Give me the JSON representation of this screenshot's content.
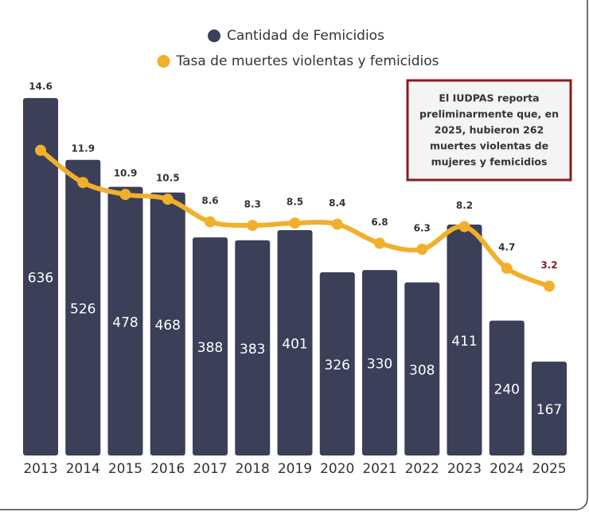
{
  "chart_data": {
    "type": "bar_line",
    "categories": [
      "2013",
      "2014",
      "2015",
      "2016",
      "2017",
      "2018",
      "2019",
      "2020",
      "2021",
      "2022",
      "2023",
      "2024",
      "2025"
    ],
    "series": [
      {
        "name": "Cantidad de Femicidios",
        "type": "bar",
        "color": "#3b3f58",
        "values": [
          636,
          526,
          478,
          468,
          388,
          383,
          401,
          326,
          330,
          308,
          411,
          240,
          167
        ]
      },
      {
        "name": "Tasa de muertes violentas y femicidios",
        "type": "line",
        "axis": "y2",
        "color": "#f0b02c",
        "values": [
          14.6,
          11.9,
          10.9,
          10.5,
          8.6,
          8.3,
          8.5,
          8.4,
          6.8,
          6.3,
          8.2,
          4.7,
          3.2
        ],
        "highlight_color": "#7a1f2b"
      }
    ],
    "ylim": [
      0,
      700
    ],
    "y2lim": [
      -11,
      22
    ],
    "annotation": [
      "El IUDPAS reporta",
      "preliminarmente que, en",
      "2025, hubieron 262",
      "muertes violentas de",
      "mujeres y femicidios"
    ],
    "annotation_border_color": "#8b1c1c"
  }
}
